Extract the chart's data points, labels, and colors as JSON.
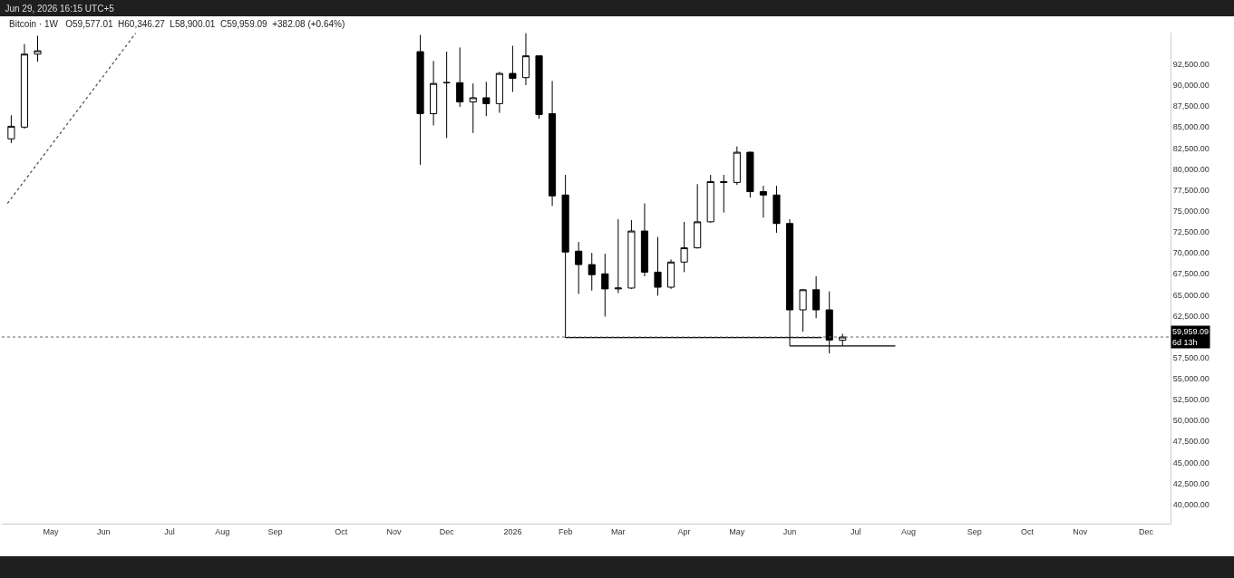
{
  "chart_data": {
    "type": "candlestick",
    "title": "Jun 29, 2026 16:15 UTC+5",
    "subtitle": "Bitcoin · 1W   O59,577.01  H60,346.27  L58,900.01  C59,959.09  +382.08 (+0.64%)",
    "x": [
      "2025-04-14",
      "2025-04-21",
      "2025-04-28",
      "2025-11-17",
      "2025-11-24",
      "2025-12-01",
      "2025-12-08",
      "2025-12-15",
      "2025-12-22",
      "2025-12-29",
      "2026-01-05",
      "2026-01-12",
      "2026-01-19",
      "2026-01-26",
      "2026-02-02",
      "2026-02-09",
      "2026-02-16",
      "2026-02-23",
      "2026-03-02",
      "2026-03-09",
      "2026-03-16",
      "2026-03-23",
      "2026-03-30",
      "2026-04-06",
      "2026-04-13",
      "2026-04-20",
      "2026-04-27",
      "2026-05-04",
      "2026-05-11",
      "2026-05-18",
      "2026-05-25",
      "2026-06-01",
      "2026-06-08",
      "2026-06-15",
      "2026-06-22",
      "2026-06-29"
    ],
    "ohlc": [
      [
        83600,
        86400,
        83100,
        85100
      ],
      [
        85000,
        94900,
        84800,
        93700
      ],
      [
        93700,
        95900,
        92800,
        94100
      ],
      [
        94000,
        96000,
        80500,
        86600
      ],
      [
        86600,
        92900,
        85200,
        90200
      ],
      [
        90300,
        94000,
        83700,
        90300
      ],
      [
        90300,
        94500,
        87400,
        88000
      ],
      [
        88000,
        90200,
        84300,
        88500
      ],
      [
        88500,
        90400,
        86300,
        87800
      ],
      [
        87800,
        91600,
        86700,
        91400
      ],
      [
        91400,
        94700,
        89200,
        90800
      ],
      [
        90900,
        96200,
        90000,
        93500
      ],
      [
        93500,
        93500,
        86000,
        86500
      ],
      [
        86600,
        90500,
        75600,
        76800
      ],
      [
        76900,
        79300,
        59900,
        70100
      ],
      [
        70200,
        71300,
        65100,
        68600
      ],
      [
        68600,
        70000,
        65500,
        67400
      ],
      [
        67500,
        69900,
        62400,
        65700
      ],
      [
        65700,
        74000,
        65200,
        65800
      ],
      [
        65800,
        73900,
        65700,
        72600
      ],
      [
        72600,
        75900,
        67200,
        67700
      ],
      [
        67700,
        71900,
        64900,
        65900
      ],
      [
        65900,
        69200,
        65700,
        68900
      ],
      [
        68900,
        73700,
        67700,
        70600
      ],
      [
        70600,
        78200,
        70500,
        73700
      ],
      [
        73700,
        79300,
        73600,
        78500
      ],
      [
        78500,
        79300,
        74800,
        78400
      ],
      [
        78400,
        82700,
        78100,
        82000
      ],
      [
        82000,
        82100,
        76600,
        77300
      ],
      [
        77300,
        78000,
        74200,
        76900
      ],
      [
        76900,
        78000,
        72400,
        73500
      ],
      [
        73500,
        74000,
        58900,
        63200
      ],
      [
        63200,
        65700,
        60600,
        65600
      ],
      [
        65600,
        67200,
        62200,
        63200
      ],
      [
        63200,
        65400,
        58000,
        59600
      ],
      [
        59577.01,
        60346.27,
        58900.01,
        59959.09
      ]
    ],
    "series": [
      {
        "type": "line",
        "color": "#000000",
        "line_style": "solid",
        "x": [
          "2026-02-02",
          "2026-06-18"
        ],
        "values": [
          59900,
          59900
        ]
      },
      {
        "type": "line",
        "color": "#000000",
        "line_style": "solid",
        "x": [
          "2026-06-01",
          "2026-07-27"
        ],
        "values": [
          58900,
          58900
        ]
      },
      {
        "type": "line",
        "color": "#555555",
        "line_style": "dotted",
        "x": [
          "2025-04-12",
          "2025-06-19"
        ],
        "values": [
          75900,
          96200
        ]
      }
    ],
    "ref_lines": [
      {
        "axis": "y",
        "value": 59959.09,
        "label": "59,959.09\n6d 13h",
        "color": "#666666",
        "line_style": "dotted"
      }
    ],
    "xlim": [
      "2025-04-09",
      "2026-12-20"
    ],
    "xticks": [
      {
        "value": "2025-05-05",
        "label": "May"
      },
      {
        "value": "2025-06-02",
        "label": "Jun"
      },
      {
        "value": "2025-07-07",
        "label": "Jul"
      },
      {
        "value": "2025-08-04",
        "label": "Aug"
      },
      {
        "value": "2025-09-01",
        "label": "Sep"
      },
      {
        "value": "2025-10-06",
        "label": "Oct"
      },
      {
        "value": "2025-11-03",
        "label": "Nov"
      },
      {
        "value": "2025-12-01",
        "label": "Dec"
      },
      {
        "value": "2026-01-05",
        "label": "2026"
      },
      {
        "value": "2026-02-02",
        "label": "Feb"
      },
      {
        "value": "2026-03-02",
        "label": "Mar"
      },
      {
        "value": "2026-04-06",
        "label": "Apr"
      },
      {
        "value": "2026-05-04",
        "label": "May"
      },
      {
        "value": "2026-06-01",
        "label": "Jun"
      },
      {
        "value": "2026-07-06",
        "label": "Jul"
      },
      {
        "value": "2026-08-03",
        "label": "Aug"
      },
      {
        "value": "2026-09-07",
        "label": "Sep"
      },
      {
        "value": "2026-10-05",
        "label": "Oct"
      },
      {
        "value": "2026-11-02",
        "label": "Nov"
      },
      {
        "value": "2026-12-07",
        "label": "Dec"
      }
    ],
    "ylim": [
      37700,
      96270
    ],
    "yticks": [
      {
        "value": 40000,
        "label": "40,000.00"
      },
      {
        "value": 42500,
        "label": "42,500.00"
      },
      {
        "value": 45000,
        "label": "45,000.00"
      },
      {
        "value": 47500,
        "label": "47,500.00"
      },
      {
        "value": 50000,
        "label": "50,000.00"
      },
      {
        "value": 52500,
        "label": "52,500.00"
      },
      {
        "value": 55000,
        "label": "55,000.00"
      },
      {
        "value": 57500,
        "label": "57,500.00"
      },
      {
        "value": 62500,
        "label": "62,500.00"
      },
      {
        "value": 65000,
        "label": "65,000.00"
      },
      {
        "value": 67500,
        "label": "67,500.00"
      },
      {
        "value": 70000,
        "label": "70,000.00"
      },
      {
        "value": 72500,
        "label": "72,500.00"
      },
      {
        "value": 75000,
        "label": "75,000.00"
      },
      {
        "value": 77500,
        "label": "77,500.00"
      },
      {
        "value": 80000,
        "label": "80,000.00"
      },
      {
        "value": 82500,
        "label": "82,500.00"
      },
      {
        "value": 85000,
        "label": "85,000.00"
      },
      {
        "value": 87500,
        "label": "87,500.00"
      },
      {
        "value": 90000,
        "label": "90,000.00"
      },
      {
        "value": 92500,
        "label": "92,500.00"
      }
    ]
  }
}
